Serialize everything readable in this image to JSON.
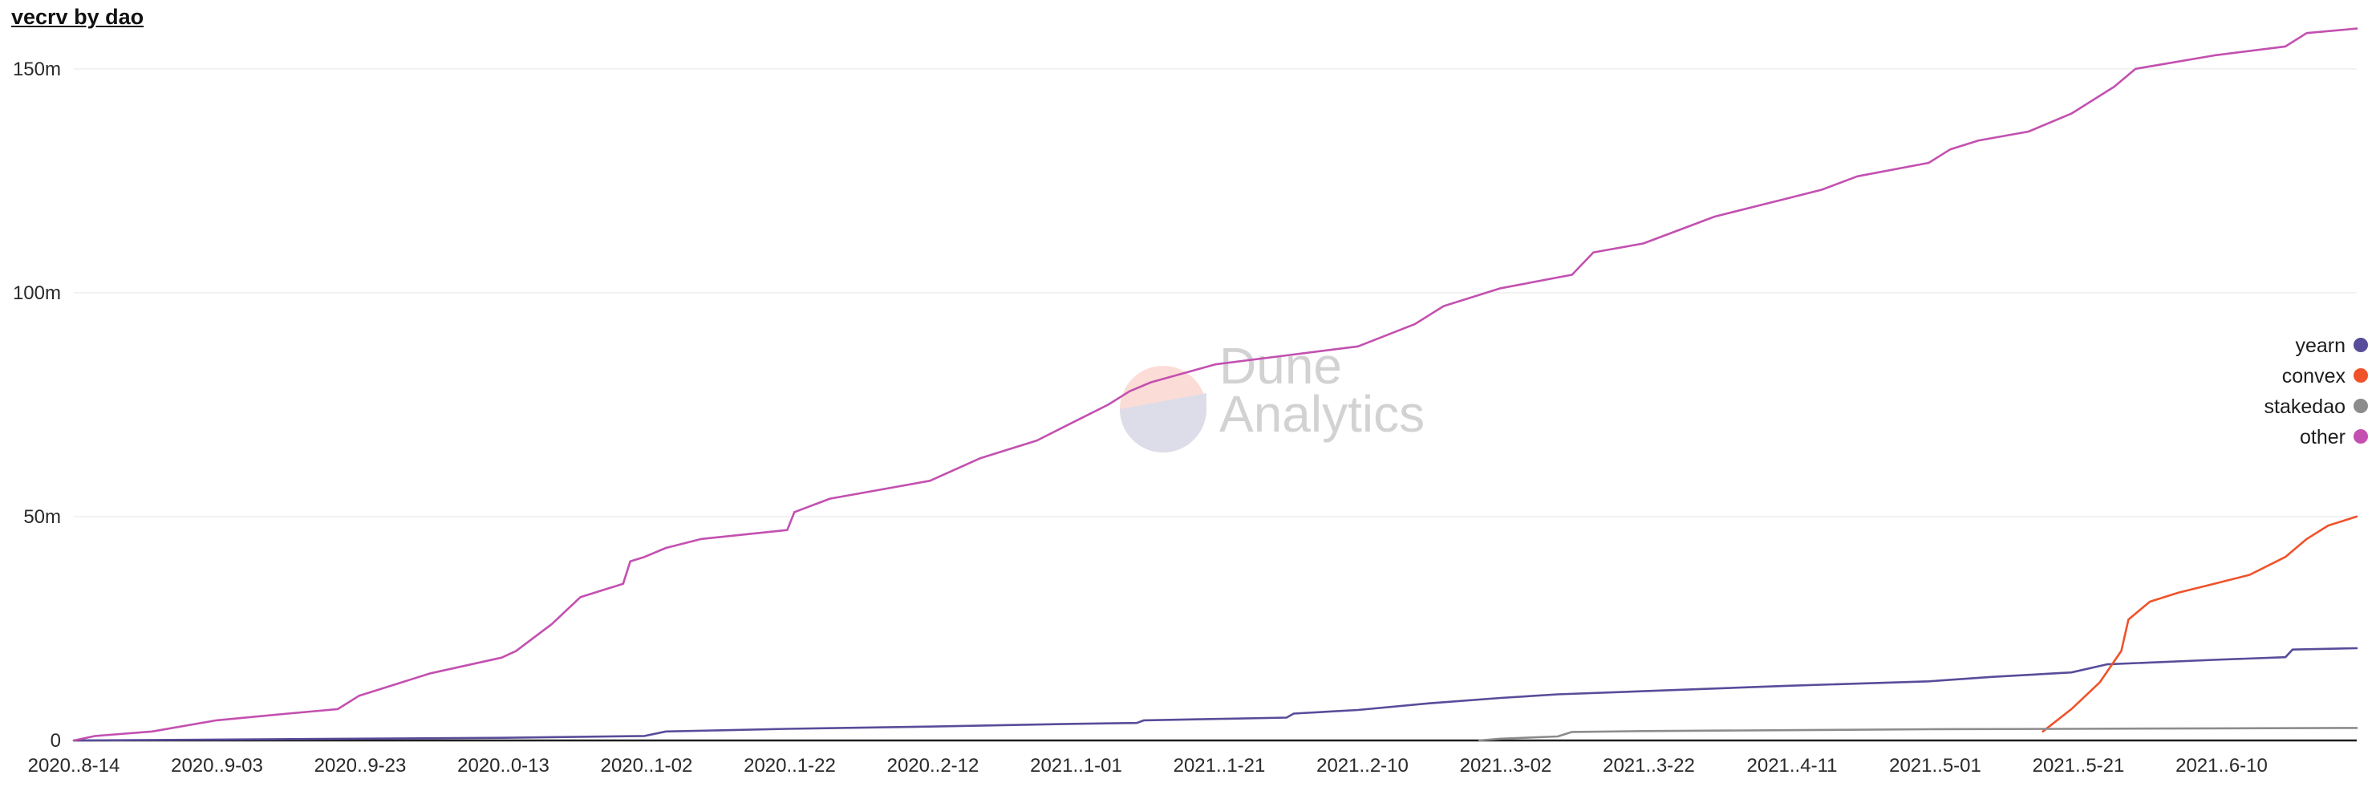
{
  "chart_data": {
    "type": "line",
    "title": "vecrv by dao",
    "ylim": [
      0,
      160000000
    ],
    "y_ticks": [
      {
        "value": 0,
        "label": "0"
      },
      {
        "value": 50000000,
        "label": "50m"
      },
      {
        "value": 100000000,
        "label": "100m"
      },
      {
        "value": 150000000,
        "label": "150m"
      }
    ],
    "x_ticks": [
      "2020..8-14",
      "2020..9-03",
      "2020..9-23",
      "2020..0-13",
      "2020..1-02",
      "2020..1-22",
      "2020..2-12",
      "2021..1-01",
      "2021..1-21",
      "2021..2-10",
      "2021..3-02",
      "2021..3-22",
      "2021..4-11",
      "2021..5-01",
      "2021..5-21",
      "2021..6-10"
    ],
    "x_start_date": "2020-08-14",
    "x_end_date": "2021-06-30",
    "grid": true,
    "legend_position": "right",
    "series": [
      {
        "name": "yearn",
        "color": "#574d9a",
        "x": [
          "2020-08-14",
          "2020-09-03",
          "2020-10-13",
          "2020-11-02",
          "2020-11-05",
          "2020-11-22",
          "2020-12-12",
          "2021-01-01",
          "2021-01-10",
          "2021-01-11",
          "2021-01-21",
          "2021-01-31",
          "2021-02-01",
          "2021-02-10",
          "2021-02-20",
          "2021-03-02",
          "2021-03-10",
          "2021-03-22",
          "2021-04-11",
          "2021-05-01",
          "2021-05-10",
          "2021-05-21",
          "2021-05-26",
          "2021-06-10",
          "2021-06-20",
          "2021-06-21",
          "2021-06-30"
        ],
        "values": [
          0,
          200000,
          600000,
          1000000,
          2000000,
          2600000,
          3100000,
          3700000,
          3900000,
          4500000,
          4800000,
          5100000,
          6000000,
          6800000,
          8300000,
          9500000,
          10300000,
          11000000,
          12200000,
          13200000,
          14200000,
          15200000,
          17000000,
          18000000,
          18600000,
          20300000,
          20600000
        ]
      },
      {
        "name": "convex",
        "color": "#f0522a",
        "x": [
          "2021-05-17",
          "2021-05-21",
          "2021-05-25",
          "2021-05-28",
          "2021-05-29",
          "2021-06-01",
          "2021-06-05",
          "2021-06-10",
          "2021-06-15",
          "2021-06-20",
          "2021-06-23",
          "2021-06-26",
          "2021-06-30"
        ],
        "values": [
          2000000,
          7000000,
          13000000,
          20000000,
          27000000,
          31000000,
          33000000,
          35000000,
          37000000,
          41000000,
          45000000,
          48000000,
          50000000
        ]
      },
      {
        "name": "stakedao",
        "color": "#8c8c8c",
        "x": [
          "2021-02-27",
          "2021-03-02",
          "2021-03-10",
          "2021-03-12",
          "2021-03-22",
          "2021-04-11",
          "2021-05-01",
          "2021-05-21",
          "2021-06-10",
          "2021-06-30"
        ],
        "values": [
          0,
          400000,
          900000,
          1900000,
          2100000,
          2300000,
          2500000,
          2600000,
          2700000,
          2800000
        ]
      },
      {
        "name": "other",
        "color": "#c350b0",
        "x": [
          "2020-08-14",
          "2020-08-17",
          "2020-08-25",
          "2020-09-03",
          "2020-09-13",
          "2020-09-20",
          "2020-09-23",
          "2020-10-03",
          "2020-10-13",
          "2020-10-15",
          "2020-10-20",
          "2020-10-24",
          "2020-10-30",
          "2020-10-31",
          "2020-11-02",
          "2020-11-05",
          "2020-11-10",
          "2020-11-22",
          "2020-11-23",
          "2020-11-28",
          "2020-12-12",
          "2020-12-19",
          "2020-12-27",
          "2021-01-01",
          "2021-01-06",
          "2021-01-09",
          "2021-01-12",
          "2021-01-21",
          "2021-01-31",
          "2021-02-10",
          "2021-02-18",
          "2021-02-22",
          "2021-03-02",
          "2021-03-12",
          "2021-03-15",
          "2021-03-22",
          "2021-04-01",
          "2021-04-11",
          "2021-04-16",
          "2021-04-21",
          "2021-05-01",
          "2021-05-04",
          "2021-05-08",
          "2021-05-15",
          "2021-05-21",
          "2021-05-27",
          "2021-05-30",
          "2021-06-10",
          "2021-06-20",
          "2021-06-23",
          "2021-06-30"
        ],
        "values": [
          0,
          1000000,
          2000000,
          4500000,
          6000000,
          7000000,
          10000000,
          15000000,
          18500000,
          20000000,
          26000000,
          32000000,
          35000000,
          40000000,
          41000000,
          43000000,
          45000000,
          47000000,
          51000000,
          54000000,
          58000000,
          63000000,
          67000000,
          71000000,
          75000000,
          78000000,
          80000000,
          84000000,
          86000000,
          88000000,
          93000000,
          97000000,
          101000000,
          104000000,
          109000000,
          111000000,
          117000000,
          121000000,
          123000000,
          126000000,
          129000000,
          132000000,
          134000000,
          136000000,
          140000000,
          146000000,
          150000000,
          153000000,
          155000000,
          158000000,
          159000000
        ]
      }
    ]
  },
  "watermark": {
    "line1": "Dune",
    "line2": "Analytics"
  }
}
